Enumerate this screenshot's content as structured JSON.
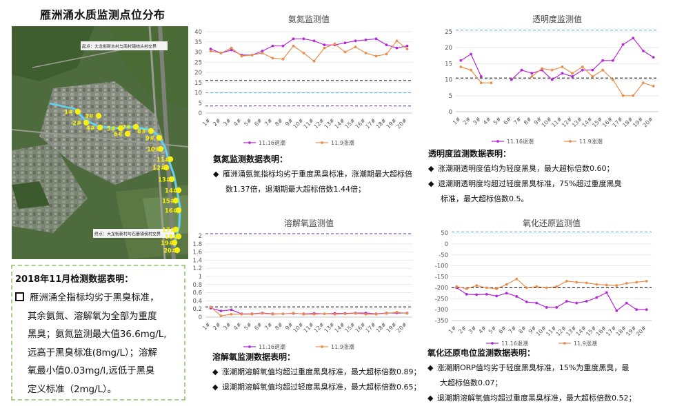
{
  "page": {
    "title": "雁洲涌水质监测点位分布"
  },
  "map": {
    "points": [
      "1#",
      "2#",
      "3#",
      "4#",
      "5#",
      "6#",
      "7#",
      "8#",
      "9#",
      "10#",
      "11#",
      "12#",
      "13#",
      "14#",
      "15#",
      "16#",
      "17#",
      "18#",
      "19#",
      "20#"
    ],
    "label_top": "起点：大龙街新水村与南村镇结头村交界",
    "label_bottom": "终点：大龙街新村与石碁镇傍村交界",
    "colors": {
      "point": "#f7ef11",
      "river": "#63d1f0"
    }
  },
  "summary": {
    "title": "2018年11月检测数据表明：",
    "text_1": "雁洲涌全指标均劣于黑臭标准，",
    "text_2": "其余氨氮、溶解氧为全部为重度",
    "text_3": "黑臭；氨氮监测最大值36.6mg/L,",
    "text_4": "远高于黑臭标准(8mg/L）；溶解",
    "text_5": "氧最小值0.03mg/l,远低于黑臭",
    "text_6": "定义标准（2mg/L）。"
  },
  "legend": {
    "series_a": "11.16退潮",
    "series_b": "11.9涨潮"
  },
  "notes": {
    "ammonia": {
      "title": "氨氮监测数据表明：",
      "b1_line1": "雁洲涌氨氮指标均劣于重度黑臭标准，涨潮期最大超标倍",
      "b1_line2": "数1.37倍，退潮期最大超标倍数1.44倍；"
    },
    "transparency": {
      "title": "透明度监测数据表明：",
      "b1": "涨潮期透明度值均为轻度黑臭，最大超标倍数0.60；",
      "b2_line1": "退潮期透明度均超过轻度黑臭标准，75%超过重度黑臭",
      "b2_line2": "标准，最大超标倍数0.5。"
    },
    "do": {
      "title": "溶解氧监测数据表明：",
      "b1": "涨潮期溶解氧值均超过重度黑臭标准，最大超标倍数0.89；",
      "b2": "退潮期溶解氧值均超过轻度黑臭标准，最大超标倍数0.65；"
    },
    "orp": {
      "title": "氧化还原电位监测数据表明：",
      "b1_line1": "涨潮期ORP值均劣于轻度黑臭标准，15%为重度黑臭，最",
      "b1_line2": "大超标倍数0.07；",
      "b2": "退潮期溶解氧值均超过重度黑臭标准，最大超标倍数0.52；"
    }
  },
  "chart_data": [
    {
      "id": "ammonia",
      "type": "line",
      "title": "氨氮监测值",
      "categories": [
        "1#",
        "2#",
        "3#",
        "4#",
        "5#",
        "6#",
        "7#",
        "8#",
        "9#",
        "10#",
        "11#",
        "12#",
        "13#",
        "14#",
        "15#",
        "16#",
        "17#",
        "18#",
        "19#",
        "20#"
      ],
      "ylim": [
        0,
        40
      ],
      "yticks": [
        0,
        5,
        10,
        15,
        20,
        25,
        30,
        35,
        40
      ],
      "series": [
        {
          "name": "11.16退潮",
          "color": "#b329d6",
          "values": [
            31.5,
            29.5,
            31,
            28.5,
            28.5,
            30.5,
            33,
            33,
            36.5,
            36.5,
            35.5,
            33.5,
            33.5,
            34.5,
            35.5,
            36,
            36.5,
            33.5,
            32,
            33
          ]
        },
        {
          "name": "11.9涨潮",
          "color": "#e98f4d",
          "values": [
            30.5,
            29.5,
            32,
            28,
            28.5,
            29.5,
            27,
            26.5,
            33,
            29.5,
            25.5,
            32,
            34,
            30,
            32.5,
            29.5,
            28,
            29,
            35.5,
            31.5
          ]
        }
      ],
      "reference_lines": [
        {
          "value": 16,
          "color": "#333333",
          "style": "dash"
        },
        {
          "value": 10,
          "color": "#5fb4e8",
          "style": "dash"
        },
        {
          "value": 3.5,
          "color": "#7a3ea8",
          "style": "dash"
        }
      ]
    },
    {
      "id": "transparency",
      "type": "line",
      "title": "透明度监测值",
      "categories": [
        "1#",
        "2#",
        "3#",
        "4#",
        "5#",
        "6#",
        "7#",
        "8#",
        "9#",
        "10#",
        "11#",
        "12#",
        "13#",
        "14#",
        "15#",
        "16#",
        "17#",
        "18#",
        "19#",
        "20#"
      ],
      "ylim": [
        0,
        25
      ],
      "yticks": [
        0,
        5,
        10,
        15,
        20,
        25
      ],
      "series": [
        {
          "name": "11.16退潮",
          "color": "#b329d6",
          "values": [
            16,
            18,
            11,
            null,
            null,
            10,
            13,
            12,
            13,
            10,
            12,
            11,
            13,
            13,
            16,
            16,
            21,
            23,
            19,
            17
          ]
        },
        {
          "name": "11.9涨潮",
          "color": "#e98f4d",
          "values": [
            14,
            13,
            9,
            9,
            null,
            null,
            null,
            11,
            13.5,
            13,
            14,
            12,
            14,
            11,
            13,
            10,
            5,
            5,
            9,
            8
          ]
        }
      ],
      "reference_lines": [
        {
          "value": 25.5,
          "color": "#5fb4e8",
          "style": "dash"
        },
        {
          "value": 10.5,
          "color": "#333333",
          "style": "dash"
        }
      ]
    },
    {
      "id": "do",
      "type": "line",
      "title": "溶解氧监测值",
      "categories": [
        "1#",
        "2#",
        "3#",
        "4#",
        "5#",
        "6#",
        "7#",
        "8#",
        "9#",
        "10#",
        "11#",
        "12#",
        "13#",
        "14#",
        "15#",
        "16#",
        "17#",
        "18#",
        "19#",
        "20#"
      ],
      "ylim": [
        0,
        2
      ],
      "yticks": [
        0,
        0.2,
        0.4,
        0.6,
        0.8,
        1,
        1.2,
        1.4,
        1.6,
        1.8,
        2
      ],
      "series": [
        {
          "name": "11.16退潮",
          "color": "#b329d6",
          "values": [
            0.22,
            0.15,
            0.18,
            0.08,
            0.08,
            0.1,
            0.08,
            0.08,
            0.09,
            0.08,
            0.09,
            0.08,
            0.09,
            0.09,
            0.1,
            0.1,
            0.08,
            0.1,
            0.1,
            0.1
          ]
        },
        {
          "name": "11.9涨潮",
          "color": "#e98f4d",
          "values": [
            0.25,
            0.03,
            0.07,
            0.07,
            0.07,
            0.09,
            0.07,
            0.08,
            0.1,
            0.07,
            0.07,
            0.08,
            0.07,
            0.08,
            0.09,
            0.07,
            0.07,
            0.09,
            0.12,
            0.09
          ]
        }
      ],
      "reference_lines": [
        {
          "value": 2.05,
          "color": "#7a3ea8",
          "style": "dash"
        },
        {
          "value": 0.25,
          "color": "#333333",
          "style": "dash"
        }
      ]
    },
    {
      "id": "orp",
      "type": "line",
      "title": "氧化还原监测值",
      "categories": [
        "1#",
        "2#",
        "3#",
        "4#",
        "5#",
        "6#",
        "7#",
        "8#",
        "9#",
        "10#",
        "11#",
        "12#",
        "13#",
        "14#",
        "15#",
        "16#",
        "17#",
        "18#",
        "19#",
        "20#"
      ],
      "ylim": [
        -350,
        50
      ],
      "yticks": [
        -350,
        -300,
        -250,
        -200,
        -150,
        -100,
        -50,
        0,
        50
      ],
      "series": [
        {
          "name": "11.16退潮",
          "color": "#b329d6",
          "values": [
            -200,
            -230,
            -232,
            -230,
            -238,
            -225,
            -240,
            -265,
            -270,
            -290,
            -290,
            -262,
            -270,
            -262,
            -245,
            -222,
            -305,
            -270,
            -300,
            -300
          ]
        },
        {
          "name": "11.9涨潮",
          "color": "#e98f4d",
          "values": [
            -195,
            -205,
            -190,
            -200,
            -205,
            -185,
            -160,
            -200,
            -195,
            -200,
            -195,
            -170,
            -175,
            -178,
            -185,
            -188,
            -190,
            -180,
            -175,
            -170
          ]
        }
      ],
      "reference_lines": [
        {
          "value": 55,
          "color": "#5fb4e8",
          "style": "dash"
        },
        {
          "value": -200,
          "color": "#333333",
          "style": "dash"
        }
      ]
    }
  ]
}
